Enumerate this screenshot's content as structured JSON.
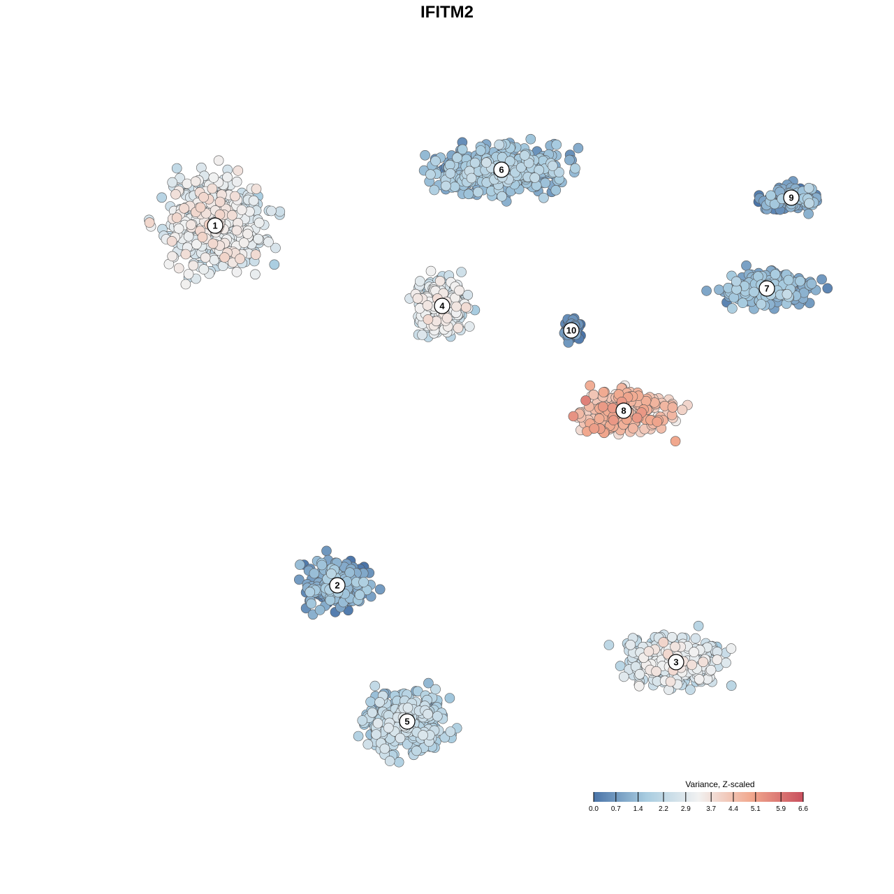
{
  "chart_data": {
    "type": "scatter",
    "title": "IFITM2",
    "legend": {
      "title": "Variance, Z-scaled",
      "ticks": [
        "0.0",
        "0.7",
        "1.4",
        "2.2",
        "2.9",
        "3.7",
        "4.4",
        "5.1",
        "5.9",
        "6.6"
      ],
      "range": [
        0.0,
        6.6
      ],
      "placement": "bottom-right"
    },
    "colors": {
      "low": "#4a74a8",
      "mid_low": "#a8cce0",
      "mid": "#f1f1f1",
      "mid_high": "#f1a88e",
      "high": "#c9505e"
    },
    "clusters": [
      {
        "label": "1",
        "x": -0.72,
        "y": 0.63,
        "value": 2.9
      },
      {
        "label": "2",
        "x": -0.37,
        "y": -0.4,
        "value": 0.9
      },
      {
        "label": "3",
        "x": 0.6,
        "y": -0.62,
        "value": 2.6
      },
      {
        "label": "4",
        "x": -0.07,
        "y": 0.4,
        "value": 2.7
      },
      {
        "label": "5",
        "x": -0.17,
        "y": -0.79,
        "value": 1.8
      },
      {
        "label": "6",
        "x": 0.1,
        "y": 0.79,
        "value": 1.3
      },
      {
        "label": "7",
        "x": 0.86,
        "y": 0.45,
        "value": 1.0
      },
      {
        "label": "8",
        "x": 0.45,
        "y": 0.1,
        "value": 4.3
      },
      {
        "label": "9",
        "x": 0.93,
        "y": 0.71,
        "value": 0.9
      },
      {
        "label": "10",
        "x": 0.3,
        "y": 0.33,
        "value": 0.4
      }
    ],
    "grid": false,
    "axes": false
  }
}
